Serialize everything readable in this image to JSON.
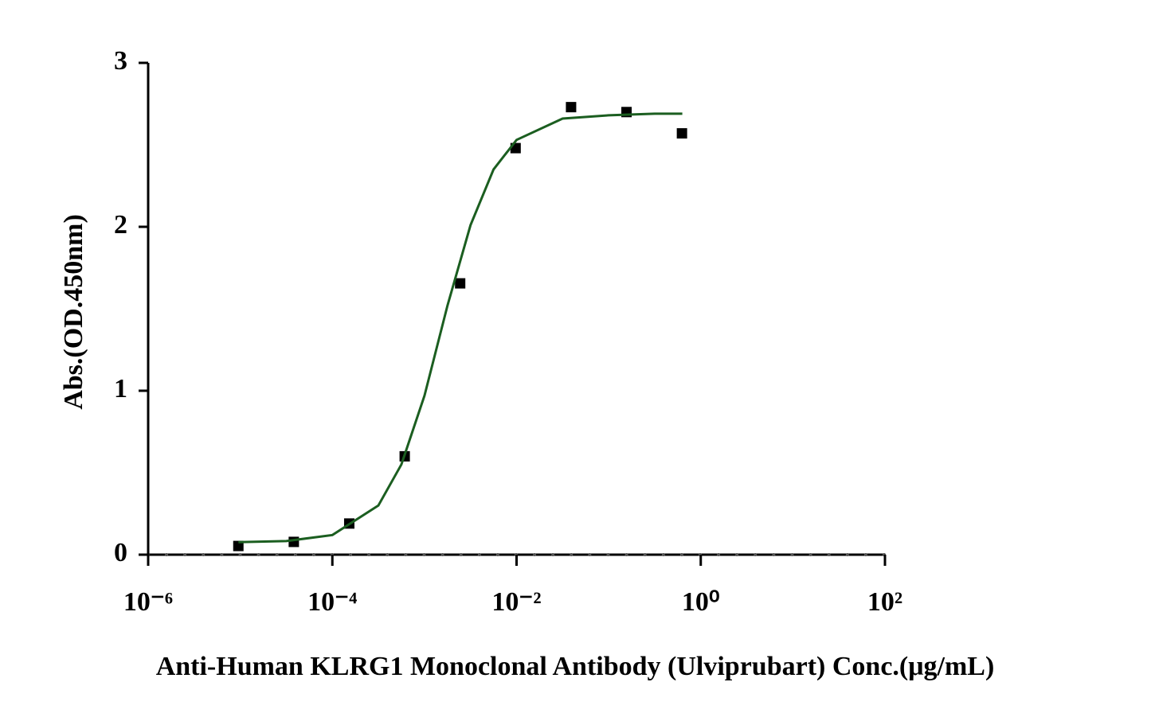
{
  "chart_data": {
    "type": "scatter",
    "x_label": "Anti-Human KLRG1 Monoclonal Antibody (Ulviprubart) Conc.(μg/mL)",
    "y_label": "Abs.(OD.450nm)",
    "x_log": true,
    "xlim": [
      1e-06,
      100
    ],
    "xticks": [
      {
        "value": 1e-06,
        "label": "10⁻⁶"
      },
      {
        "value": 0.0001,
        "label": "10⁻⁴"
      },
      {
        "value": 0.01,
        "label": "10⁻²"
      },
      {
        "value": 1,
        "label": "10⁰"
      },
      {
        "value": 100,
        "label": "10²"
      }
    ],
    "ylim": [
      0,
      3
    ],
    "yticks": [
      0,
      1,
      2,
      3
    ],
    "series": [
      {
        "color": "#000000",
        "marker": "square",
        "x": [
          9.5367431640625e-06,
          3.814697265625e-05,
          0.000152587890625,
          0.0006103515625,
          0.00244140625,
          0.009765625,
          0.0390625,
          0.15625,
          0.625
        ],
        "values": [
          0.053,
          0.078,
          0.19,
          0.6,
          1.655,
          2.48,
          2.73,
          2.7,
          2.57
        ]
      },
      {
        "color": "#1b5e20",
        "marker": "line",
        "x": [
          9.55e-06,
          3.16e-05,
          0.0001,
          0.000316,
          0.000562,
          0.001,
          0.00178,
          0.00316,
          0.00562,
          0.01,
          0.0316,
          0.1,
          0.316,
          0.631
        ],
        "values": [
          0.076,
          0.083,
          0.12,
          0.3,
          0.55,
          0.97,
          1.52,
          2.01,
          2.35,
          2.53,
          2.66,
          2.68,
          2.69,
          2.69
        ]
      }
    ]
  }
}
